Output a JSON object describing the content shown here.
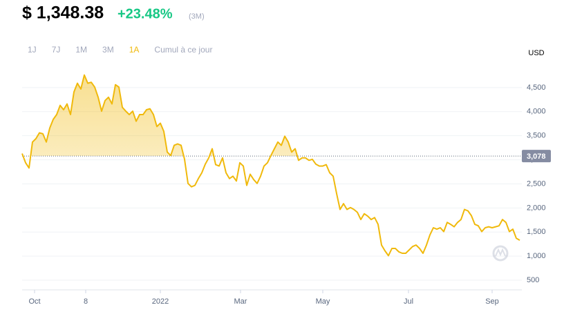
{
  "price": "$ 1,348.38",
  "change": "+23.48%",
  "change_period": "(3M)",
  "ranges": [
    "1J",
    "7J",
    "1M",
    "3M",
    "1A",
    "Cumul à ce jour"
  ],
  "active_range": 4,
  "chart_data": {
    "type": "line",
    "y_unit": "USD",
    "series": [
      {
        "name": "Price",
        "color": "#f0b90b",
        "values": [
          3130,
          2940,
          2830,
          3370,
          3440,
          3560,
          3540,
          3370,
          3660,
          3840,
          3940,
          4130,
          4040,
          4160,
          3940,
          4410,
          4590,
          4470,
          4760,
          4590,
          4610,
          4510,
          4300,
          4010,
          4230,
          4300,
          4160,
          4560,
          4510,
          4090,
          4010,
          3940,
          4010,
          3800,
          3940,
          3940,
          4040,
          4060,
          3940,
          3690,
          3760,
          3590,
          3160,
          3090,
          3300,
          3330,
          3300,
          3010,
          2510,
          2440,
          2470,
          2610,
          2730,
          2910,
          3040,
          3230,
          2900,
          2870,
          3040,
          2730,
          2610,
          2660,
          2560,
          2940,
          2870,
          2470,
          2700,
          2590,
          2510,
          2660,
          2870,
          2940,
          3090,
          3230,
          3370,
          3300,
          3490,
          3370,
          3160,
          3230,
          2990,
          3040,
          3040,
          2990,
          3010,
          2910,
          2870,
          2870,
          2900,
          2730,
          2660,
          2300,
          1970,
          2090,
          1970,
          2010,
          1970,
          1910,
          1760,
          1880,
          1830,
          1760,
          1800,
          1660,
          1230,
          1110,
          1010,
          1160,
          1160,
          1090,
          1060,
          1060,
          1130,
          1200,
          1230,
          1160,
          1060,
          1230,
          1440,
          1590,
          1560,
          1590,
          1510,
          1700,
          1660,
          1610,
          1700,
          1760,
          1970,
          1940,
          1840,
          1660,
          1630,
          1510,
          1590,
          1610,
          1590,
          1610,
          1630,
          1760,
          1700,
          1510,
          1560,
          1370,
          1330
        ]
      }
    ],
    "baseline": {
      "value": 3078,
      "label": "3,078"
    },
    "xlim": [
      0,
      144
    ],
    "xticks": [
      {
        "value": 3.6,
        "label": "Oct"
      },
      {
        "value": 18.4,
        "label": "8"
      },
      {
        "value": 40,
        "label": "2022"
      },
      {
        "value": 63.2,
        "label": "Mar"
      },
      {
        "value": 87,
        "label": "May"
      },
      {
        "value": 111.8,
        "label": "Jul"
      },
      {
        "value": 136,
        "label": "Sep"
      }
    ],
    "ylim": [
      300,
      5000
    ],
    "yticks": [
      500,
      {
        "value": 1000,
        "label": "1,000"
      },
      {
        "value": 1500,
        "label": "1,500"
      },
      {
        "value": 2000,
        "label": "2,000"
      },
      {
        "value": 2500,
        "label": "2,500"
      },
      {
        "value": 3000,
        "label": "3,000"
      },
      {
        "value": 3500,
        "label": "3,500"
      },
      {
        "value": 4000,
        "label": "4,000"
      },
      {
        "value": 4500,
        "label": "4,500"
      }
    ],
    "grid": true
  }
}
